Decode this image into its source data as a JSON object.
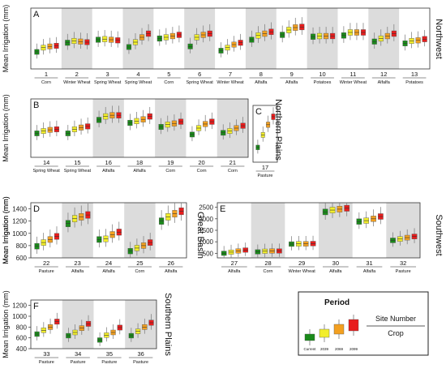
{
  "y_label": "Mean Irrigation (mm)",
  "colors": {
    "current": "#1a8a1a",
    "p2039": "#f2ee2c",
    "p2069": "#f3a020",
    "p2099": "#e81c1c",
    "shade": "#dcdcdc"
  },
  "legend": {
    "title": "Period",
    "periods": [
      "Current",
      "2039",
      "2069",
      "2099"
    ],
    "site_label": "Site Number",
    "crop_label": "Crop"
  },
  "chart_data": [
    {
      "type": "box",
      "panel": "A",
      "region": "Northwest",
      "ylim": [
        0,
        1000
      ],
      "yticks": [],
      "sites": [
        {
          "site": "1",
          "crop": "Corn",
          "shaded": false,
          "medians": [
            280,
            350,
            370,
            380
          ]
        },
        {
          "site": "2",
          "crop": "Winter Wheat",
          "shaded": true,
          "medians": [
            430,
            460,
            450,
            440
          ]
        },
        {
          "site": "3",
          "crop": "Spring Wheat",
          "shaded": false,
          "medians": [
            480,
            490,
            480,
            470
          ]
        },
        {
          "site": "4",
          "crop": "Spring Wheat",
          "shaded": true,
          "medians": [
            360,
            440,
            520,
            580
          ]
        },
        {
          "site": "5",
          "crop": "Corn",
          "shaded": false,
          "medians": [
            500,
            520,
            540,
            560
          ]
        },
        {
          "site": "6",
          "crop": "Spring Wheat",
          "shaded": true,
          "medians": [
            370,
            520,
            560,
            580
          ]
        },
        {
          "site": "7",
          "crop": "Winter Wheat",
          "shaded": false,
          "medians": [
            300,
            350,
            400,
            430
          ]
        },
        {
          "site": "8",
          "crop": "Alfalfa",
          "shaded": true,
          "medians": [
            480,
            550,
            580,
            610
          ]
        },
        {
          "site": "9",
          "crop": "Alfalfa",
          "shaded": false,
          "medians": [
            560,
            640,
            680,
            690
          ]
        },
        {
          "site": "10",
          "crop": "Potatoes",
          "shaded": true,
          "medians": [
            530,
            540,
            540,
            540
          ]
        },
        {
          "site": "11",
          "crop": "Winter Wheat",
          "shaded": false,
          "medians": [
            550,
            600,
            600,
            600
          ]
        },
        {
          "site": "12",
          "crop": "Alfalfa",
          "shaded": true,
          "medians": [
            450,
            500,
            540,
            580
          ]
        },
        {
          "site": "13",
          "crop": "Potatoes",
          "shaded": false,
          "medians": [
            420,
            460,
            470,
            490
          ]
        }
      ]
    },
    {
      "type": "box",
      "panel": "B",
      "region": "Northern Plains",
      "ylim": [
        0,
        1000
      ],
      "yticks": [],
      "sites": [
        {
          "site": "14",
          "crop": "Spring Wheat",
          "shaded": false,
          "medians": [
            410,
            450,
            470,
            480
          ]
        },
        {
          "site": "15",
          "crop": "Spring Wheat",
          "shaded": false,
          "medians": [
            410,
            480,
            510,
            530
          ]
        },
        {
          "site": "16",
          "crop": "Alfalfa",
          "shaded": true,
          "medians": [
            640,
            700,
            720,
            720
          ]
        },
        {
          "site": "18",
          "crop": "Alfalfa",
          "shaded": false,
          "medians": [
            590,
            620,
            650,
            700
          ]
        },
        {
          "site": "19",
          "crop": "Corn",
          "shaded": true,
          "medians": [
            520,
            560,
            580,
            610
          ]
        },
        {
          "site": "20",
          "crop": "Corn",
          "shaded": false,
          "medians": [
            390,
            500,
            570,
            610
          ]
        },
        {
          "site": "21",
          "crop": "Corn",
          "shaded": true,
          "medians": [
            420,
            450,
            500,
            540
          ]
        }
      ]
    },
    {
      "type": "box",
      "panel": "C",
      "region": "",
      "ylim": [
        0,
        2500
      ],
      "yticks": [],
      "sites": [
        {
          "site": "17",
          "crop": "Pasture",
          "shaded": false,
          "medians": [
            650,
            1200,
            1650,
            2000
          ]
        }
      ]
    },
    {
      "type": "box",
      "panel": "D",
      "region": "Great Basin",
      "ylim": [
        600,
        1500
      ],
      "yticks": [
        600,
        800,
        1000,
        1200,
        1400
      ],
      "sites": [
        {
          "site": "22",
          "crop": "Pasture",
          "shaded": false,
          "medians": [
            790,
            850,
            900,
            950
          ]
        },
        {
          "site": "23",
          "crop": "Alfalfa",
          "shaded": true,
          "medians": [
            1160,
            1240,
            1270,
            1300
          ]
        },
        {
          "site": "24",
          "crop": "Alfalfa",
          "shaded": false,
          "medians": [
            900,
            910,
            980,
            1020
          ]
        },
        {
          "site": "25",
          "crop": "Corn",
          "shaded": true,
          "medians": [
            710,
            760,
            800,
            850
          ]
        },
        {
          "site": "26",
          "crop": "Alfalfa",
          "shaded": false,
          "medians": [
            1200,
            1270,
            1320,
            1360
          ]
        }
      ]
    },
    {
      "type": "box",
      "panel": "E",
      "region": "Southwest",
      "ylim": [
        300,
        2700
      ],
      "yticks": [
        500,
        1000,
        1500,
        2000,
        2500
      ],
      "sites": [
        {
          "site": "27",
          "crop": "Alfalfa",
          "shaded": false,
          "medians": [
            500,
            550,
            600,
            640
          ]
        },
        {
          "site": "28",
          "crop": "Corn",
          "shaded": true,
          "medians": [
            560,
            590,
            600,
            600
          ]
        },
        {
          "site": "29",
          "crop": "Winter Wheat",
          "shaded": false,
          "medians": [
            900,
            910,
            910,
            920
          ]
        },
        {
          "site": "30",
          "crop": "Alfalfa",
          "shaded": true,
          "medians": [
            2300,
            2380,
            2420,
            2460
          ]
        },
        {
          "site": "31",
          "crop": "Alfalfa",
          "shaded": false,
          "medians": [
            1880,
            1920,
            2000,
            2100
          ]
        },
        {
          "site": "32",
          "crop": "Pasture",
          "shaded": true,
          "medians": [
            1060,
            1120,
            1180,
            1230
          ]
        }
      ]
    },
    {
      "type": "box",
      "panel": "F",
      "region": "Southern Plains",
      "ylim": [
        400,
        1300
      ],
      "yticks": [
        400,
        600,
        800,
        1000,
        1200
      ],
      "sites": [
        {
          "site": "33",
          "crop": "Pasture",
          "shaded": false,
          "medians": [
            670,
            740,
            800,
            900
          ]
        },
        {
          "site": "34",
          "crop": "Pasture",
          "shaded": true,
          "medians": [
            640,
            700,
            780,
            860
          ]
        },
        {
          "site": "35",
          "crop": "Pasture",
          "shaded": false,
          "medians": [
            560,
            650,
            700,
            790
          ]
        },
        {
          "site": "36",
          "crop": "Pasture",
          "shaded": true,
          "medians": [
            640,
            720,
            800,
            880
          ]
        }
      ]
    }
  ]
}
